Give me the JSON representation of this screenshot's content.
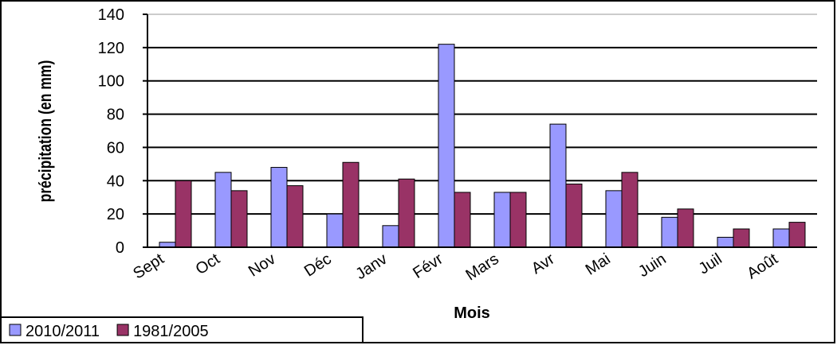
{
  "chart_data": {
    "type": "bar",
    "x_label": "Mois",
    "y_label": "précipitation (en mm)",
    "categories": [
      "Sept",
      "Oct",
      "Nov",
      "Déc",
      "Janv",
      "Févr",
      "Mars",
      "Avr",
      "Mai",
      "Juin",
      "Juil",
      "Août"
    ],
    "series": [
      {
        "name": "2010/2011",
        "color": "#9999ff",
        "values": [
          3,
          45,
          48,
          20,
          13,
          122,
          33,
          74,
          34,
          18,
          6,
          11
        ]
      },
      {
        "name": "1981/2005",
        "color": "#993366",
        "values": [
          40,
          34,
          37,
          51,
          41,
          33,
          33,
          38,
          45,
          23,
          11,
          15
        ]
      }
    ],
    "ylim": [
      0,
      140
    ],
    "yticks": [
      0,
      20,
      40,
      60,
      80,
      100,
      120,
      140
    ],
    "grid": true,
    "legend": "bottom-left"
  }
}
